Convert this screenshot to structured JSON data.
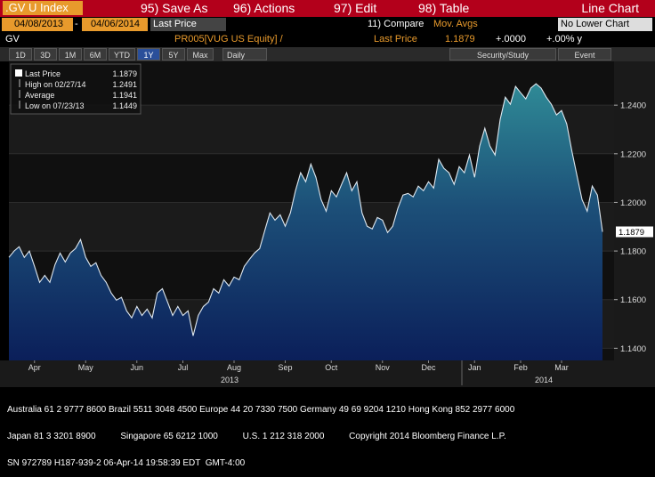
{
  "toolbar": {
    "security": ".GV U Index",
    "buttons": [
      "95) Save As",
      "96) Actions",
      "97) Edit",
      "98) Table"
    ],
    "view": "Line Chart"
  },
  "settings": {
    "start_date": "04/08/2013",
    "separator": "-",
    "end_date": "04/06/2014",
    "field": "Last Price",
    "compare": "11) Compare",
    "mov_avgs": "Mov. Avgs",
    "lower_chart": "No Lower Chart"
  },
  "header": {
    "ticker": "GV",
    "security": "PR005[VUG US Equity] /",
    "field": "Last Price",
    "last": "1.1879",
    "change": "+.0000",
    "change_pct": "+.00% y"
  },
  "periods": {
    "buttons": [
      "1D",
      "3D",
      "1M",
      "6M",
      "YTD",
      "1Y",
      "5Y",
      "Max"
    ],
    "selected_index": 5,
    "frequency": "Daily",
    "tools": [
      "Security/Study",
      "Event"
    ]
  },
  "chart_data": {
    "type": "line",
    "categories": [
      null,
      null,
      null,
      null,
      null,
      "Apr",
      null,
      null,
      null,
      null,
      null,
      null,
      null,
      null,
      null,
      "May",
      null,
      null,
      null,
      null,
      null,
      null,
      null,
      null,
      null,
      "Jun",
      null,
      null,
      null,
      null,
      null,
      null,
      null,
      null,
      "Jul",
      null,
      null,
      null,
      null,
      null,
      null,
      null,
      null,
      null,
      "Aug",
      null,
      null,
      null,
      null,
      null,
      null,
      null,
      null,
      null,
      "Sep",
      null,
      null,
      null,
      null,
      null,
      null,
      null,
      null,
      "Oct",
      null,
      null,
      null,
      null,
      null,
      null,
      null,
      null,
      null,
      "Nov",
      null,
      null,
      null,
      null,
      null,
      null,
      null,
      null,
      "Dec",
      null,
      null,
      null,
      null,
      null,
      null,
      null,
      null,
      "Jan",
      null,
      null,
      null,
      null,
      null,
      null,
      null,
      null,
      "Feb",
      null,
      null,
      null,
      null,
      null,
      null,
      null,
      "Mar",
      null,
      null,
      null,
      null,
      null,
      null,
      null,
      null
    ],
    "years": [
      "2013",
      "2014"
    ],
    "series": [
      {
        "name": "Last Price",
        "color": "#dfe8f0",
        "values": [
          1.1774,
          1.18,
          1.1818,
          1.1774,
          1.18,
          1.1737,
          1.1671,
          1.17,
          1.1671,
          1.1744,
          1.1792,
          1.1755,
          1.1792,
          1.181,
          1.1847,
          1.1774,
          1.1737,
          1.1752,
          1.17,
          1.1671,
          1.1627,
          1.1598,
          1.1609,
          1.1554,
          1.1525,
          1.1572,
          1.1535,
          1.1561,
          1.1525,
          1.1627,
          1.1645,
          1.159,
          1.1535,
          1.1572,
          1.1535,
          1.1554,
          1.1451,
          1.1535,
          1.1572,
          1.159,
          1.1645,
          1.1627,
          1.1682,
          1.1656,
          1.1693,
          1.1682,
          1.1737,
          1.1766,
          1.1792,
          1.181,
          1.1884,
          1.1957,
          1.1927,
          1.1949,
          1.1902,
          1.1957,
          1.2048,
          1.2122,
          1.2085,
          1.2158,
          1.2103,
          1.2012,
          1.1964,
          1.2048,
          1.2023,
          1.2074,
          1.2122,
          1.2048,
          1.2085,
          1.1957,
          1.1902,
          1.1891,
          1.1938,
          1.1927,
          1.1876,
          1.1902,
          1.1975,
          1.203,
          1.2037,
          1.2023,
          1.2067,
          1.2048,
          1.2085,
          1.2059,
          1.2177,
          1.214,
          1.2122,
          1.2074,
          1.2147,
          1.2122,
          1.2195,
          1.2103,
          1.2232,
          1.2305,
          1.2232,
          1.2195,
          1.2341,
          1.2433,
          1.2404,
          1.2477,
          1.2451,
          1.2426,
          1.247,
          1.2488,
          1.247,
          1.2433,
          1.2404,
          1.236,
          1.2378,
          1.2323,
          1.2213,
          1.2111,
          1.2012,
          1.1964,
          1.2067,
          1.203,
          1.1879
        ]
      }
    ],
    "fill": true,
    "legend": [
      {
        "label": "High on 02/27/14",
        "value": 1.2491
      },
      {
        "label": "Average",
        "value": 1.1941
      },
      {
        "label": "Low on 07/23/13",
        "value": 1.1449
      }
    ],
    "ylim": [
      1.135,
      1.258
    ],
    "yticks": [
      {
        "value": 1.14,
        "label": "1.1400"
      },
      {
        "value": 1.16,
        "label": "1.1600"
      },
      {
        "value": 1.18,
        "label": "1.1800"
      },
      {
        "value": 1.2,
        "label": "1.2000"
      },
      {
        "value": 1.22,
        "label": "1.2200"
      },
      {
        "value": 1.24,
        "label": "1.2400"
      }
    ],
    "grid": true
  },
  "footer": {
    "lines": [
      "Australia 61 2 9777 8600 Brazil 5511 3048 4500 Europe 44 20 7330 7500 Germany 49 69 9204 1210 Hong Kong 852 2977 6000",
      "Japan 81 3 3201 8900          Singapore 65 6212 1000          U.S. 1 212 318 2000          Copyright 2014 Bloomberg Finance L.P.",
      "SN 972789 H187-939-2 06-Apr-14 19:58:39 EDT  GMT-4:00"
    ]
  }
}
